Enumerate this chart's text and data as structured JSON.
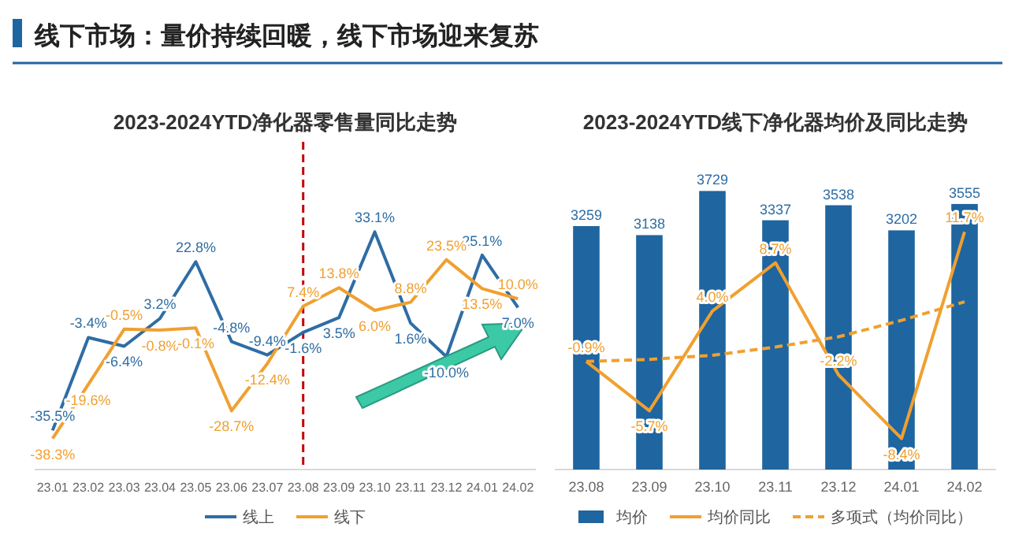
{
  "chart_data": [
    {
      "type": "other",
      "title": "线下市场：量价持续回暖，线下市场迎来复苏"
    },
    {
      "type": "line",
      "title": "2023-2024YTD净化器零售量同比走势",
      "categories": [
        "23.01",
        "23.02",
        "23.03",
        "23.04",
        "23.05",
        "23.06",
        "23.07",
        "23.08",
        "23.09",
        "23.10",
        "23.11",
        "23.12",
        "24.01",
        "24.02"
      ],
      "legend": "bottom",
      "ref_lines": [
        {
          "axis": "x",
          "value": "23.08",
          "color": "#c00000",
          "line_style": "dashed"
        }
      ],
      "series": [
        {
          "name": "线上",
          "color": "#2e6da4",
          "values": [
            -35.5,
            -3.4,
            -6.4,
            3.2,
            22.8,
            -4.8,
            -9.4,
            -1.6,
            3.5,
            33.1,
            1.6,
            -10.0,
            25.1,
            7.0
          ],
          "value_labels": [
            "-35.5%",
            "-3.4%",
            "-6.4%",
            "3.2%",
            "22.8%",
            "-4.8%",
            "-9.4%",
            "-1.6%",
            "3.5%",
            "33.1%",
            "1.6%",
            "-10.0%",
            "25.1%",
            "7.0%"
          ]
        },
        {
          "name": "线下",
          "color": "#f0a030",
          "values": [
            -38.3,
            -19.6,
            -0.5,
            -0.8,
            -0.1,
            -28.7,
            -12.4,
            7.4,
            13.8,
            6.0,
            8.8,
            23.5,
            13.5,
            10.0
          ],
          "value_labels": [
            "-38.3%",
            "-19.6%",
            "-0.5%",
            "-0.8%",
            "-0.1%",
            "-28.7%",
            "-12.4%",
            "7.4%",
            "13.8%",
            "6.0%",
            "8.8%",
            "23.5%",
            "13.5%",
            "10.0%"
          ]
        }
      ]
    },
    {
      "type": "bar",
      "title": "2023-2024YTD线下净化器均价及同比走势",
      "categories": [
        "23.08",
        "23.09",
        "23.10",
        "23.11",
        "23.12",
        "24.01",
        "24.02"
      ],
      "legend": "bottom",
      "series": [
        {
          "name": "均价",
          "type": "bar",
          "color": "#1f65a0",
          "values": [
            3259,
            3138,
            3729,
            3337,
            3538,
            3202,
            3555
          ],
          "value_labels": [
            "3259",
            "3138",
            "3729",
            "3337",
            "3538",
            "3202",
            "3555"
          ]
        },
        {
          "name": "均价同比",
          "type": "line",
          "axis": "y2",
          "color": "#f0a030",
          "values": [
            -0.9,
            -5.7,
            4.0,
            8.7,
            -2.2,
            -8.4,
            11.7
          ],
          "value_labels": [
            "-0.9%",
            "-5.7%",
            "4.0%",
            "8.7%",
            "-2.2%",
            "-8.4%",
            "11.7%"
          ]
        },
        {
          "name": "多项式（均价同比）",
          "type": "line",
          "axis": "y2",
          "line_style": "dashed",
          "color": "#f0a030",
          "values": [
            -0.9,
            -0.7,
            -0.3,
            0.5,
            1.5,
            3.1,
            4.9
          ]
        }
      ]
    }
  ]
}
